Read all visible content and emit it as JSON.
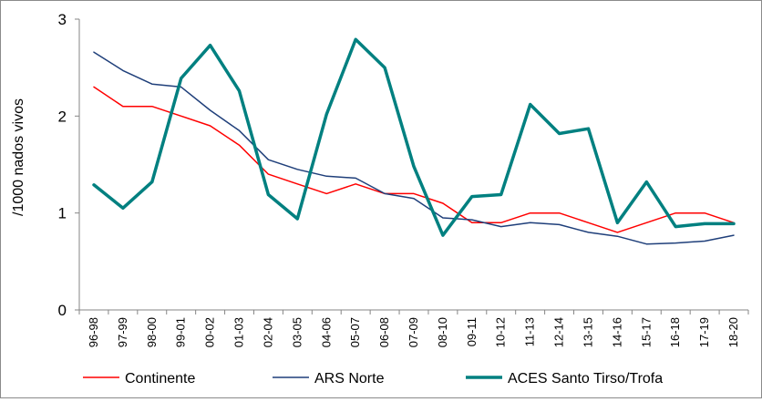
{
  "chart_data": {
    "type": "line",
    "title": "",
    "xlabel": "",
    "ylabel": "/1000 nados vivos",
    "ylim": [
      0,
      3
    ],
    "yticks": [
      "0",
      "1",
      "2",
      "3"
    ],
    "grid": false,
    "legend_position": "bottom",
    "categories": [
      "96-98",
      "97-99",
      "98-00",
      "99-01",
      "00-02",
      "01-03",
      "02-04",
      "03-05",
      "04-06",
      "05-07",
      "06-08",
      "07-09",
      "08-10",
      "09-11",
      "10-12",
      "11-13",
      "12-14",
      "13-15",
      "14-16",
      "15-17",
      "16-18",
      "17-19",
      "18-20"
    ],
    "series": [
      {
        "name": "Continente",
        "color": "#ff0000",
        "line_width": 1.5,
        "values": [
          2.3,
          2.1,
          2.1,
          2.0,
          1.9,
          1.7,
          1.4,
          1.3,
          1.2,
          1.3,
          1.2,
          1.2,
          1.1,
          0.9,
          0.9,
          1.0,
          1.0,
          0.9,
          0.8,
          0.9,
          1.0,
          1.0,
          0.9
        ]
      },
      {
        "name": "ARS Norte",
        "color": "#1f3f7a",
        "line_width": 1.5,
        "values": [
          2.66,
          2.47,
          2.33,
          2.3,
          2.06,
          1.85,
          1.55,
          1.45,
          1.38,
          1.36,
          1.2,
          1.15,
          0.95,
          0.93,
          0.86,
          0.9,
          0.88,
          0.8,
          0.76,
          0.68,
          0.69,
          0.71,
          0.77
        ]
      },
      {
        "name": "ACES Santo Tirso/Trofa",
        "color": "#008080",
        "line_width": 3.5,
        "values": [
          1.29,
          1.05,
          1.32,
          2.39,
          2.73,
          2.26,
          1.19,
          0.94,
          2.02,
          2.79,
          2.5,
          1.48,
          0.77,
          1.17,
          1.19,
          2.12,
          1.82,
          1.87,
          0.9,
          1.32,
          0.86,
          0.89,
          0.89
        ]
      }
    ]
  }
}
